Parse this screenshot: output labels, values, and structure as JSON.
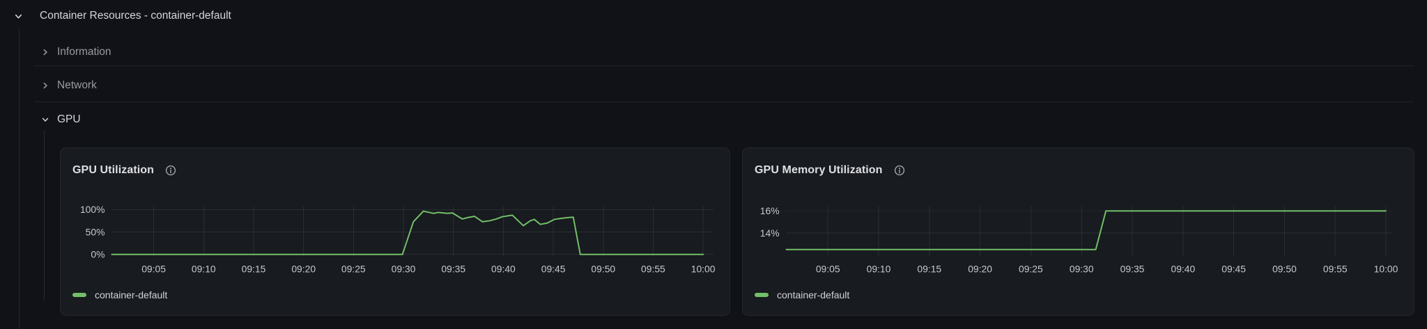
{
  "header": {
    "title": "Container Resources - container-default"
  },
  "sections": [
    {
      "label": "Information",
      "state": "collapsed"
    },
    {
      "label": "Network",
      "state": "collapsed"
    },
    {
      "label": "GPU",
      "state": "expanded"
    }
  ],
  "icons": {
    "chevron_down": "⌄",
    "chevron_right": "›",
    "info": "ⓘ"
  },
  "colors": {
    "background": "#111217",
    "panel_background": "#181b1f",
    "panel_border": "#24262c",
    "divider": "#222428",
    "series_green": "#73bf69",
    "text_bright": "#d5d6db",
    "text_dim": "#989ba1",
    "axis_text": "#c8c9cf"
  },
  "chart_data": [
    {
      "type": "line",
      "title": "GPU Utilization",
      "xlim": [
        0.8,
        61.05
      ],
      "ylim": [
        0,
        107.7
      ],
      "grid": true,
      "legend_position": "bottom-left",
      "y_ticks": [
        {
          "v": 0,
          "label": "0%"
        },
        {
          "v": 50,
          "label": "50%"
        },
        {
          "v": 100,
          "label": "100%"
        }
      ],
      "x_ticks": [
        {
          "t": 5,
          "label": "09:05"
        },
        {
          "t": 10,
          "label": "09:10"
        },
        {
          "t": 15,
          "label": "09:15"
        },
        {
          "t": 20,
          "label": "09:20"
        },
        {
          "t": 25,
          "label": "09:25"
        },
        {
          "t": 30,
          "label": "09:30"
        },
        {
          "t": 35,
          "label": "09:35"
        },
        {
          "t": 40,
          "label": "09:40"
        },
        {
          "t": 45,
          "label": "09:45"
        },
        {
          "t": 50,
          "label": "09:50"
        },
        {
          "t": 55,
          "label": "09:55"
        },
        {
          "t": 60,
          "label": "10:00"
        }
      ],
      "series": [
        {
          "name": "container-default",
          "color": "#73bf69",
          "points": [
            [
              0.8,
              0
            ],
            [
              10,
              0
            ],
            [
              20,
              0
            ],
            [
              29.9,
              0
            ],
            [
              31,
              73
            ],
            [
              32,
              96.5
            ],
            [
              33,
              91.5
            ],
            [
              33.5,
              93.5
            ],
            [
              34.4,
              91.5
            ],
            [
              34.9,
              92.5
            ],
            [
              35.9,
              79
            ],
            [
              36.4,
              82
            ],
            [
              37.1,
              85
            ],
            [
              37.9,
              73
            ],
            [
              38.6,
              75
            ],
            [
              39.3,
              79
            ],
            [
              39.9,
              84
            ],
            [
              40.6,
              86.5
            ],
            [
              40.9,
              87.5
            ],
            [
              42,
              64
            ],
            [
              42.7,
              75
            ],
            [
              43.1,
              78
            ],
            [
              43.7,
              67
            ],
            [
              44.4,
              70
            ],
            [
              45.1,
              78
            ],
            [
              45.7,
              80
            ],
            [
              46.4,
              82
            ],
            [
              47,
              83
            ],
            [
              47.7,
              0
            ],
            [
              50,
              0
            ],
            [
              55,
              0
            ],
            [
              60,
              0
            ]
          ]
        }
      ]
    },
    {
      "type": "line",
      "title": "GPU Memory Utilization",
      "xlim": [
        0.9,
        60.7
      ],
      "ylim": [
        12.06,
        16.44
      ],
      "grid": true,
      "legend_position": "bottom-left",
      "y_ticks": [
        {
          "v": 14,
          "label": "14%"
        },
        {
          "v": 16,
          "label": "16%"
        }
      ],
      "x_ticks": [
        {
          "t": 5,
          "label": "09:05"
        },
        {
          "t": 10,
          "label": "09:10"
        },
        {
          "t": 15,
          "label": "09:15"
        },
        {
          "t": 20,
          "label": "09:20"
        },
        {
          "t": 25,
          "label": "09:25"
        },
        {
          "t": 30,
          "label": "09:30"
        },
        {
          "t": 35,
          "label": "09:35"
        },
        {
          "t": 40,
          "label": "09:40"
        },
        {
          "t": 45,
          "label": "09:45"
        },
        {
          "t": 50,
          "label": "09:50"
        },
        {
          "t": 55,
          "label": "09:55"
        },
        {
          "t": 60,
          "label": "10:00"
        }
      ],
      "series": [
        {
          "name": "container-default",
          "color": "#73bf69",
          "points": [
            [
              0.9,
              12.5
            ],
            [
              10,
              12.5
            ],
            [
              20,
              12.5
            ],
            [
              31.4,
              12.5
            ],
            [
              32.4,
              16
            ],
            [
              40,
              16
            ],
            [
              50,
              16
            ],
            [
              60,
              16
            ]
          ]
        }
      ]
    }
  ]
}
